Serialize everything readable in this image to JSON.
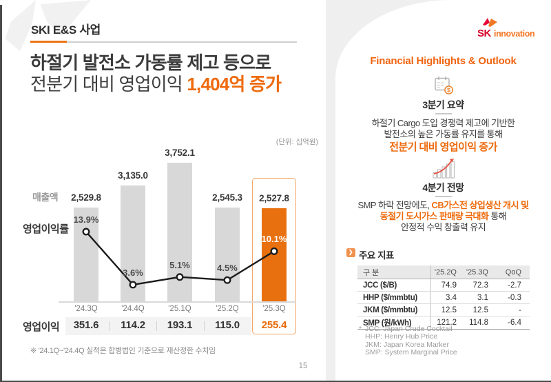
{
  "header": {
    "tag": "SKI E&S 사업"
  },
  "logo": {
    "sk": "SK",
    "innovation": "innovation"
  },
  "title": {
    "line1": "하절기 발전소 가동률 제고 등으로",
    "line2_prefix": "전분기 대비 영업이익 ",
    "line2_highlight": "1,404억 증가"
  },
  "chart_data": {
    "type": "bar+line",
    "unit_label": "(단위: 십억원)",
    "categories": [
      "'24.3Q",
      "'24.4Q",
      "'25.1Q",
      "'25.2Q",
      "'25.3Q"
    ],
    "series": [
      {
        "name": "매출액",
        "type": "bar",
        "values": [
          2529.8,
          3135.0,
          3752.1,
          2545.3,
          2527.8
        ],
        "labels": [
          "2,529.8",
          "3,135.0",
          "3,752.1",
          "2,545.3",
          "2,527.8"
        ]
      },
      {
        "name": "영업이익률",
        "type": "line",
        "values": [
          13.9,
          3.6,
          5.1,
          4.5,
          10.1
        ],
        "labels": [
          "13.9%",
          "3.6%",
          "5.1%",
          "4.5%",
          "10.1%"
        ]
      },
      {
        "name": "영업이익",
        "type": "values-row",
        "values": [
          351.6,
          114.2,
          193.1,
          115.0,
          255.4
        ],
        "labels": [
          "351.6",
          "114.2",
          "193.1",
          "115.0",
          "255.4"
        ]
      }
    ],
    "highlight_index": 4,
    "ylim_bar": [
      0,
      4000
    ],
    "grid": false,
    "legend_position": "left-labels",
    "colors": {
      "bar_default": "#d8d8d8",
      "bar_highlight": "#e8700e",
      "line": "#1b1b1b",
      "highlight_box_border": "#f3a765"
    }
  },
  "footnote": "※ '24.1Q~'24.4Q 실적은 합병법인 기준으로 재산정한 수치임",
  "page": {
    "number": "15"
  },
  "card": {
    "title": "Financial Highlights & Outlook",
    "q3": {
      "heading": "3분기 요약",
      "line1": "하절기 Cargo 도입 경쟁력 제고에 기반한",
      "line2": "발전소의 높은 가동률 유지를 통해",
      "highlight": "전분기 대비 영업이익 증가"
    },
    "q4": {
      "heading": "4분기 전망",
      "line1_prefix": "SMP 하락 전망에도, ",
      "line1_highlight": "CB가스전 상업생산 개시 및",
      "line2_highlight": "동절기 도시가스 판매량 극대화",
      "line2_suffix": " 통해",
      "line3": "안정적 수익 창출력 유지"
    },
    "metrics": {
      "section_title": "주요 지표",
      "bullet_glyph": "❯",
      "columns": [
        "구 분",
        "'25.2Q",
        "'25.3Q",
        "QoQ"
      ],
      "rows": [
        {
          "label": "JCC ($/B)",
          "q2": "74.9",
          "q3": "72.3",
          "qoq": "-2.7"
        },
        {
          "label": "HHP ($/mmbtu)",
          "q2": "3.4",
          "q3": "3.1",
          "qoq": "-0.3"
        },
        {
          "label": "JKM ($/mmbtu)",
          "q2": "12.5",
          "q3": "12.5",
          "qoq": "-"
        },
        {
          "label": "SMP (원/kWh)",
          "q2": "121.2",
          "q3": "114.8",
          "qoq": "-6.4"
        }
      ],
      "footnote_marker": "*",
      "footnotes": [
        "JCC: Japan Crude Cocktail",
        "HHP: Henry Hub Price",
        "JKM: Japan Korea Marker",
        "SMP: System Marginal Price"
      ]
    }
  },
  "colors": {
    "accent_orange": "#ee6a0c",
    "text_dark": "#3b3b3b",
    "panel_gray": "#efefef"
  }
}
